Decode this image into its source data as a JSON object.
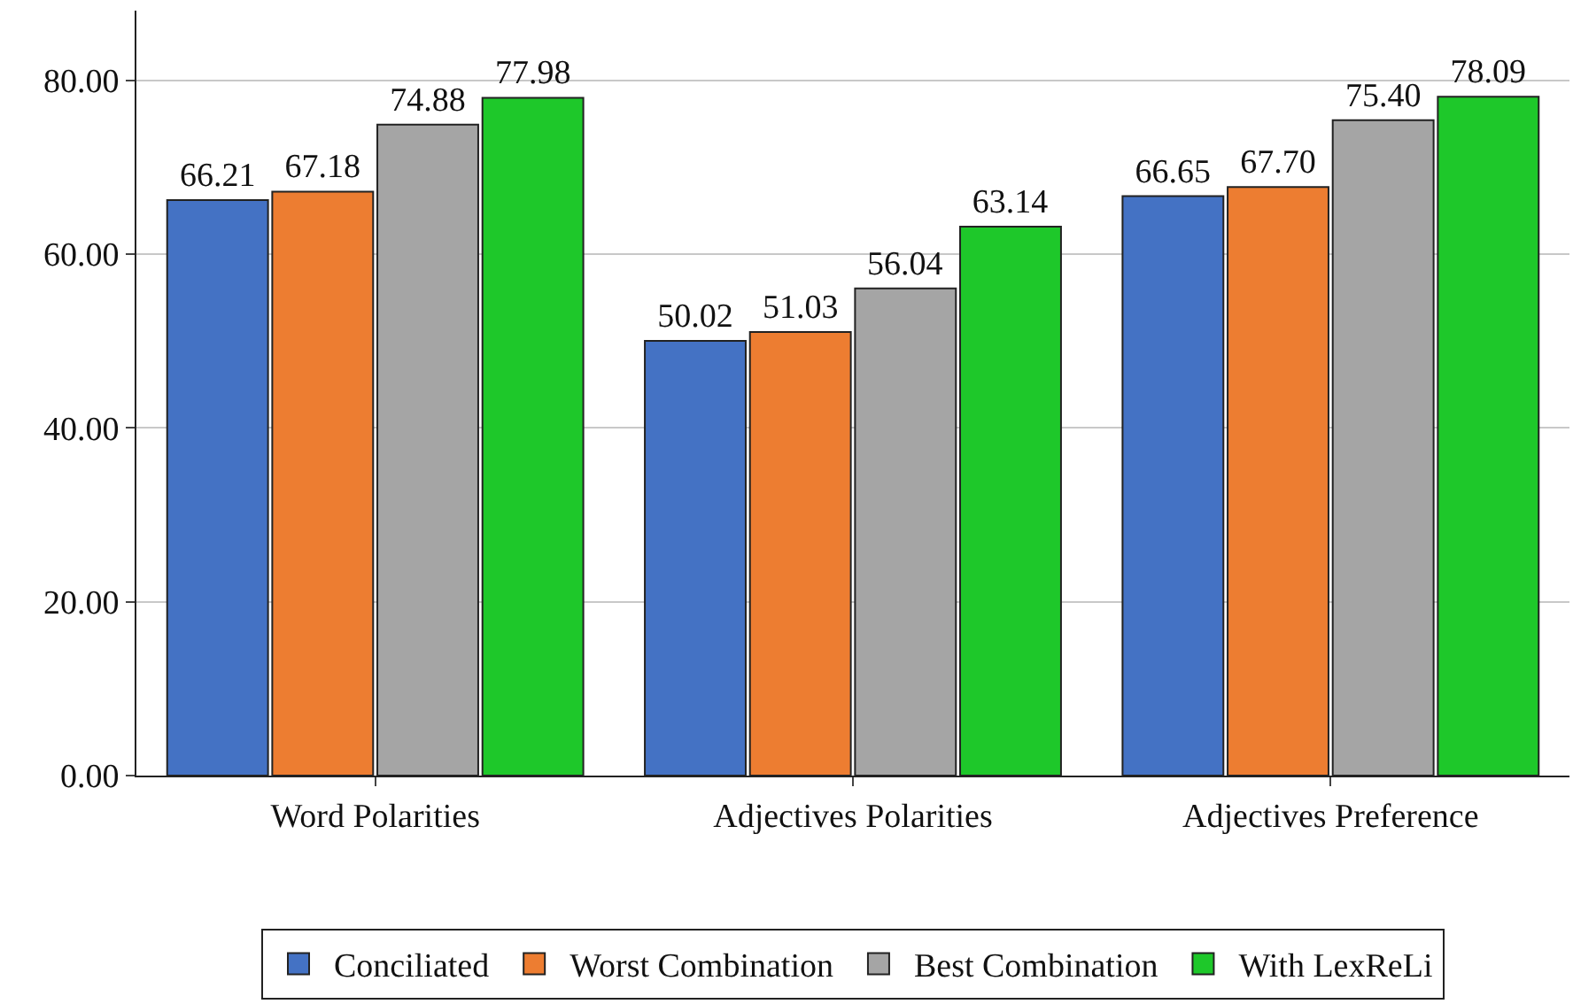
{
  "chart_data": {
    "type": "bar",
    "categories": [
      "Word Polarities",
      "Adjectives Polarities",
      "Adjectives Preference"
    ],
    "series": [
      {
        "name": "Conciliated",
        "color": "#4472c4",
        "values": [
          66.21,
          50.02,
          66.65
        ],
        "value_labels": [
          "66.21",
          "50.02",
          "66.65"
        ]
      },
      {
        "name": "Worst Combination",
        "color": "#ed7d31",
        "values": [
          67.18,
          51.03,
          67.7
        ],
        "value_labels": [
          "67.18",
          "51.03",
          "67.70"
        ]
      },
      {
        "name": "Best Combination",
        "color": "#a5a5a5",
        "values": [
          74.88,
          56.04,
          75.4
        ],
        "value_labels": [
          "74.88",
          "56.04",
          "75.40"
        ]
      },
      {
        "name": "With LexReLi",
        "color": "#1ec82a",
        "values": [
          77.98,
          63.14,
          78.09
        ],
        "value_labels": [
          "77.98",
          "63.14",
          "78.09"
        ]
      }
    ],
    "ylim": [
      0,
      88
    ],
    "yticks": [
      {
        "value": 0,
        "label": "0.00"
      },
      {
        "value": 20,
        "label": "20.00"
      },
      {
        "value": 40,
        "label": "40.00"
      },
      {
        "value": 60,
        "label": "60.00"
      },
      {
        "value": 80,
        "label": "80.00"
      }
    ],
    "grid": "y",
    "legend": "bottom"
  }
}
